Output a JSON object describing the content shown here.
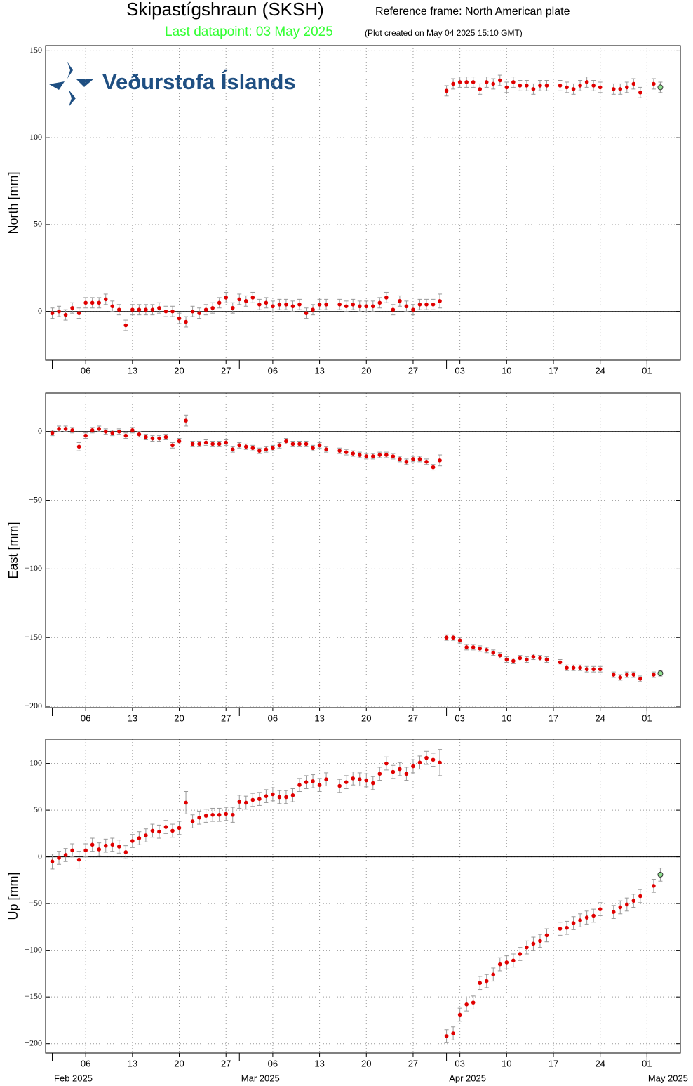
{
  "header": {
    "title": "Skipastígshraun (SKSH)",
    "subtitle": "Reference frame: North American plate",
    "last_datapoint": "Last datapoint: 03 May 2025",
    "created": "(Plot created on May 04 2025 15:10 GMT)",
    "logo": "Veðurstofa Íslands"
  },
  "chart_data": [
    {
      "type": "scatter",
      "ylabel": "North [mm]",
      "color": "#e00000",
      "last_color": "#8fe08f",
      "zero_line": true,
      "grid": true,
      "x": [
        "2025-02-01",
        "2025-02-02",
        "2025-02-03",
        "2025-02-04",
        "2025-02-05",
        "2025-02-06",
        "2025-02-07",
        "2025-02-08",
        "2025-02-09",
        "2025-02-10",
        "2025-02-11",
        "2025-02-12",
        "2025-02-13",
        "2025-02-14",
        "2025-02-15",
        "2025-02-16",
        "2025-02-17",
        "2025-02-18",
        "2025-02-19",
        "2025-02-20",
        "2025-02-21",
        "2025-02-22",
        "2025-02-23",
        "2025-02-24",
        "2025-02-25",
        "2025-02-26",
        "2025-02-27",
        "2025-02-28",
        "2025-03-01",
        "2025-03-02",
        "2025-03-03",
        "2025-03-04",
        "2025-03-05",
        "2025-03-06",
        "2025-03-07",
        "2025-03-08",
        "2025-03-09",
        "2025-03-10",
        "2025-03-11",
        "2025-03-12",
        "2025-03-13",
        "2025-03-14",
        "2025-03-16",
        "2025-03-17",
        "2025-03-18",
        "2025-03-19",
        "2025-03-20",
        "2025-03-21",
        "2025-03-22",
        "2025-03-23",
        "2025-03-24",
        "2025-03-25",
        "2025-03-26",
        "2025-03-27",
        "2025-03-28",
        "2025-03-29",
        "2025-03-30",
        "2025-03-31",
        "2025-04-01",
        "2025-04-02",
        "2025-04-03",
        "2025-04-04",
        "2025-04-05",
        "2025-04-06",
        "2025-04-07",
        "2025-04-08",
        "2025-04-09",
        "2025-04-10",
        "2025-04-11",
        "2025-04-12",
        "2025-04-13",
        "2025-04-14",
        "2025-04-15",
        "2025-04-16",
        "2025-04-18",
        "2025-04-19",
        "2025-04-20",
        "2025-04-21",
        "2025-04-22",
        "2025-04-23",
        "2025-04-24",
        "2025-04-26",
        "2025-04-27",
        "2025-04-28",
        "2025-04-29",
        "2025-04-30",
        "2025-05-02",
        "2025-05-03"
      ],
      "values": [
        -1,
        0,
        -2,
        2,
        -1,
        5,
        5,
        5,
        7,
        3,
        1,
        -8,
        1,
        1,
        1,
        1,
        2,
        0,
        0,
        -4,
        -6,
        0,
        -1,
        1,
        2,
        5,
        8,
        2,
        7,
        6,
        8,
        4,
        5,
        3,
        4,
        4,
        3,
        4,
        -1,
        1,
        4,
        4,
        4,
        3,
        4,
        3,
        3,
        3,
        5,
        8,
        1,
        6,
        3,
        1,
        4,
        4,
        4,
        6,
        127,
        131,
        132,
        132,
        132,
        128,
        132,
        131,
        133,
        129,
        132,
        130,
        130,
        128,
        130,
        130,
        130,
        129,
        128,
        130,
        132,
        130,
        129,
        128,
        128,
        129,
        131,
        126,
        131,
        129
      ],
      "errors": [
        3,
        3,
        3,
        3,
        3,
        3,
        3,
        3,
        3,
        3,
        3,
        3,
        3,
        3,
        3,
        3,
        3,
        3,
        3,
        3,
        3,
        3,
        3,
        3,
        3,
        3,
        3,
        3,
        3,
        3,
        3,
        3,
        3,
        3,
        3,
        3,
        3,
        3,
        3,
        3,
        3,
        3,
        3,
        3,
        3,
        3,
        3,
        3,
        3,
        3,
        3,
        3,
        3,
        3,
        3,
        3,
        3,
        4,
        3,
        3,
        3,
        3,
        3,
        3,
        3,
        3,
        3,
        3,
        3,
        3,
        3,
        3,
        3,
        3,
        3,
        3,
        3,
        3,
        3,
        3,
        3,
        3,
        3,
        3,
        3,
        3,
        3,
        3
      ],
      "xlim": [
        "2025-01-31",
        "2025-05-06"
      ],
      "xticks": [
        {
          "value": "2025-02-06",
          "label": "06"
        },
        {
          "value": "2025-02-13",
          "label": "13"
        },
        {
          "value": "2025-02-20",
          "label": "20"
        },
        {
          "value": "2025-02-27",
          "label": "27"
        },
        {
          "value": "2025-03-06",
          "label": "06"
        },
        {
          "value": "2025-03-13",
          "label": "13"
        },
        {
          "value": "2025-03-20",
          "label": "20"
        },
        {
          "value": "2025-03-27",
          "label": "27"
        },
        {
          "value": "2025-04-03",
          "label": "03"
        },
        {
          "value": "2025-04-10",
          "label": "10"
        },
        {
          "value": "2025-04-17",
          "label": "17"
        },
        {
          "value": "2025-04-24",
          "label": "24"
        },
        {
          "value": "2025-05-01",
          "label": "01"
        }
      ],
      "ylim": [
        -28,
        153
      ],
      "yticks": [
        0,
        50,
        100,
        150
      ]
    },
    {
      "type": "scatter",
      "ylabel": "East [mm]",
      "color": "#e00000",
      "last_color": "#8fe08f",
      "zero_line": true,
      "grid": true,
      "x": [
        "2025-02-01",
        "2025-02-02",
        "2025-02-03",
        "2025-02-04",
        "2025-02-05",
        "2025-02-06",
        "2025-02-07",
        "2025-02-08",
        "2025-02-09",
        "2025-02-10",
        "2025-02-11",
        "2025-02-12",
        "2025-02-13",
        "2025-02-14",
        "2025-02-15",
        "2025-02-16",
        "2025-02-17",
        "2025-02-18",
        "2025-02-19",
        "2025-02-20",
        "2025-02-21",
        "2025-02-22",
        "2025-02-23",
        "2025-02-24",
        "2025-02-25",
        "2025-02-26",
        "2025-02-27",
        "2025-02-28",
        "2025-03-01",
        "2025-03-02",
        "2025-03-03",
        "2025-03-04",
        "2025-03-05",
        "2025-03-06",
        "2025-03-07",
        "2025-03-08",
        "2025-03-09",
        "2025-03-10",
        "2025-03-11",
        "2025-03-12",
        "2025-03-13",
        "2025-03-14",
        "2025-03-16",
        "2025-03-17",
        "2025-03-18",
        "2025-03-19",
        "2025-03-20",
        "2025-03-21",
        "2025-03-22",
        "2025-03-23",
        "2025-03-24",
        "2025-03-25",
        "2025-03-26",
        "2025-03-27",
        "2025-03-28",
        "2025-03-29",
        "2025-03-30",
        "2025-03-31",
        "2025-04-01",
        "2025-04-02",
        "2025-04-03",
        "2025-04-04",
        "2025-04-05",
        "2025-04-06",
        "2025-04-07",
        "2025-04-08",
        "2025-04-09",
        "2025-04-10",
        "2025-04-11",
        "2025-04-12",
        "2025-04-13",
        "2025-04-14",
        "2025-04-15",
        "2025-04-16",
        "2025-04-18",
        "2025-04-19",
        "2025-04-20",
        "2025-04-21",
        "2025-04-22",
        "2025-04-23",
        "2025-04-24",
        "2025-04-26",
        "2025-04-27",
        "2025-04-28",
        "2025-04-29",
        "2025-04-30",
        "2025-05-02",
        "2025-05-03"
      ],
      "values": [
        -1,
        2,
        2,
        1,
        -11,
        -3,
        1,
        2,
        0,
        -1,
        0,
        -3,
        1,
        -2,
        -4,
        -5,
        -5,
        -4,
        -10,
        -7,
        8,
        -9,
        -9,
        -8,
        -9,
        -9,
        -8,
        -13,
        -10,
        -11,
        -12,
        -14,
        -13,
        -12,
        -10,
        -7,
        -9,
        -9,
        -9,
        -12,
        -10,
        -13,
        -14,
        -15,
        -16,
        -17,
        -18,
        -18,
        -17,
        -17,
        -18,
        -20,
        -22,
        -20,
        -20,
        -22,
        -26,
        -21,
        -150,
        -150,
        -152,
        -157,
        -157,
        -158,
        -159,
        -161,
        -163,
        -166,
        -167,
        -165,
        -166,
        -164,
        -165,
        -166,
        -168,
        -172,
        -172,
        -172,
        -173,
        -173,
        -173,
        -177,
        -179,
        -177,
        -177,
        -180,
        -177,
        -176
      ],
      "errors": [
        2,
        2,
        2,
        2,
        3,
        2,
        2,
        2,
        2,
        2,
        2,
        2,
        2,
        2,
        2,
        2,
        2,
        2,
        2,
        2,
        4,
        2,
        2,
        2,
        2,
        2,
        2,
        2,
        2,
        2,
        2,
        2,
        2,
        2,
        2,
        2,
        2,
        2,
        2,
        2,
        2,
        2,
        2,
        2,
        2,
        2,
        2,
        2,
        2,
        2,
        2,
        2,
        2,
        2,
        2,
        2,
        2,
        4,
        2,
        2,
        2,
        2,
        2,
        2,
        2,
        2,
        2,
        2,
        2,
        2,
        2,
        2,
        2,
        2,
        2,
        2,
        2,
        2,
        2,
        2,
        2,
        2,
        2,
        2,
        2,
        2,
        2,
        2
      ],
      "xlim": [
        "2025-01-31",
        "2025-05-06"
      ],
      "xticks": [
        {
          "value": "2025-02-06",
          "label": "06"
        },
        {
          "value": "2025-02-13",
          "label": "13"
        },
        {
          "value": "2025-02-20",
          "label": "20"
        },
        {
          "value": "2025-02-27",
          "label": "27"
        },
        {
          "value": "2025-03-06",
          "label": "06"
        },
        {
          "value": "2025-03-13",
          "label": "13"
        },
        {
          "value": "2025-03-20",
          "label": "20"
        },
        {
          "value": "2025-03-27",
          "label": "27"
        },
        {
          "value": "2025-04-03",
          "label": "03"
        },
        {
          "value": "2025-04-10",
          "label": "10"
        },
        {
          "value": "2025-04-17",
          "label": "17"
        },
        {
          "value": "2025-04-24",
          "label": "24"
        },
        {
          "value": "2025-05-01",
          "label": "01"
        }
      ],
      "ylim": [
        -201,
        28
      ],
      "yticks": [
        {
          "value": -200,
          "label": "−200"
        },
        {
          "value": -150,
          "label": "−150"
        },
        {
          "value": -100,
          "label": "−100"
        },
        {
          "value": -50,
          "label": "−50"
        },
        0
      ]
    },
    {
      "type": "scatter",
      "ylabel": "Up [mm]",
      "color": "#e00000",
      "last_color": "#8fe08f",
      "zero_line": true,
      "grid": true,
      "x": [
        "2025-02-01",
        "2025-02-02",
        "2025-02-03",
        "2025-02-04",
        "2025-02-05",
        "2025-02-06",
        "2025-02-07",
        "2025-02-08",
        "2025-02-09",
        "2025-02-10",
        "2025-02-11",
        "2025-02-12",
        "2025-02-13",
        "2025-02-14",
        "2025-02-15",
        "2025-02-16",
        "2025-02-17",
        "2025-02-18",
        "2025-02-19",
        "2025-02-20",
        "2025-02-21",
        "2025-02-22",
        "2025-02-23",
        "2025-02-24",
        "2025-02-25",
        "2025-02-26",
        "2025-02-27",
        "2025-02-28",
        "2025-03-01",
        "2025-03-02",
        "2025-03-03",
        "2025-03-04",
        "2025-03-05",
        "2025-03-06",
        "2025-03-07",
        "2025-03-08",
        "2025-03-09",
        "2025-03-10",
        "2025-03-11",
        "2025-03-12",
        "2025-03-13",
        "2025-03-14",
        "2025-03-16",
        "2025-03-17",
        "2025-03-18",
        "2025-03-19",
        "2025-03-20",
        "2025-03-21",
        "2025-03-22",
        "2025-03-23",
        "2025-03-24",
        "2025-03-25",
        "2025-03-26",
        "2025-03-27",
        "2025-03-28",
        "2025-03-29",
        "2025-03-30",
        "2025-03-31",
        "2025-04-01",
        "2025-04-02",
        "2025-04-03",
        "2025-04-04",
        "2025-04-05",
        "2025-04-06",
        "2025-04-07",
        "2025-04-08",
        "2025-04-09",
        "2025-04-10",
        "2025-04-11",
        "2025-04-12",
        "2025-04-13",
        "2025-04-14",
        "2025-04-15",
        "2025-04-16",
        "2025-04-18",
        "2025-04-19",
        "2025-04-20",
        "2025-04-21",
        "2025-04-22",
        "2025-04-23",
        "2025-04-24",
        "2025-04-26",
        "2025-04-27",
        "2025-04-28",
        "2025-04-29",
        "2025-04-30",
        "2025-05-02",
        "2025-05-03"
      ],
      "values": [
        -5,
        -1,
        2,
        7,
        -3,
        7,
        13,
        8,
        12,
        13,
        11,
        5,
        17,
        20,
        23,
        28,
        27,
        32,
        28,
        31,
        58,
        38,
        42,
        44,
        45,
        45,
        46,
        45,
        59,
        58,
        61,
        62,
        65,
        67,
        64,
        64,
        66,
        77,
        80,
        81,
        77,
        83,
        76,
        80,
        84,
        83,
        82,
        79,
        89,
        100,
        91,
        94,
        89,
        97,
        101,
        106,
        104,
        101,
        -192,
        -189,
        -169,
        -158,
        -156,
        -135,
        -133,
        -126,
        -115,
        -113,
        -111,
        -104,
        -97,
        -93,
        -90,
        -84,
        -77,
        -76,
        -71,
        -68,
        -65,
        -63,
        -56,
        -59,
        -54,
        -51,
        -47,
        -42,
        -31,
        -19
      ],
      "errors": [
        8,
        7,
        7,
        7,
        9,
        7,
        7,
        7,
        7,
        7,
        7,
        7,
        7,
        7,
        7,
        7,
        7,
        7,
        7,
        7,
        12,
        7,
        7,
        7,
        7,
        7,
        7,
        8,
        7,
        7,
        7,
        7,
        7,
        7,
        7,
        7,
        7,
        7,
        7,
        7,
        7,
        7,
        7,
        7,
        7,
        7,
        7,
        7,
        7,
        7,
        7,
        7,
        7,
        7,
        7,
        7,
        7,
        14,
        7,
        7,
        7,
        7,
        7,
        7,
        7,
        7,
        7,
        7,
        7,
        7,
        7,
        7,
        7,
        7,
        7,
        7,
        7,
        7,
        7,
        7,
        7,
        7,
        7,
        7,
        7,
        7,
        7,
        7
      ],
      "xlim": [
        "2025-01-31",
        "2025-05-06"
      ],
      "xticks": [
        {
          "value": "2025-02-06",
          "label": "06"
        },
        {
          "value": "2025-02-13",
          "label": "13"
        },
        {
          "value": "2025-02-20",
          "label": "20"
        },
        {
          "value": "2025-02-27",
          "label": "27"
        },
        {
          "value": "2025-03-06",
          "label": "06"
        },
        {
          "value": "2025-03-13",
          "label": "13"
        },
        {
          "value": "2025-03-20",
          "label": "20"
        },
        {
          "value": "2025-03-27",
          "label": "27"
        },
        {
          "value": "2025-04-03",
          "label": "03"
        },
        {
          "value": "2025-04-10",
          "label": "10"
        },
        {
          "value": "2025-04-17",
          "label": "17"
        },
        {
          "value": "2025-04-24",
          "label": "24"
        },
        {
          "value": "2025-05-01",
          "label": "01"
        }
      ],
      "month_ticks": [
        {
          "value": "2025-02-01",
          "label": "Feb 2025"
        },
        {
          "value": "2025-03-01",
          "label": "Mar 2025"
        },
        {
          "value": "2025-04-01",
          "label": "Apr 2025"
        },
        {
          "value": "2025-05-01",
          "label": "May 2025"
        }
      ],
      "ylim": [
        -210,
        126
      ],
      "yticks": [
        {
          "value": -200,
          "label": "−200"
        },
        {
          "value": -150,
          "label": "−150"
        },
        {
          "value": -100,
          "label": "−100"
        },
        {
          "value": -50,
          "label": "−50"
        },
        0,
        50,
        100
      ]
    }
  ]
}
